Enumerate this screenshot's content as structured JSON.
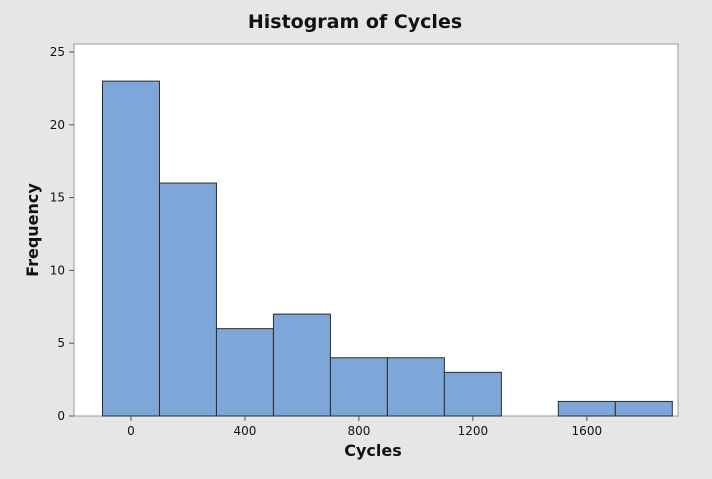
{
  "chart_data": {
    "type": "bar",
    "title": "Histogram of Cycles",
    "xlabel": "Cycles",
    "ylabel": "Frequency",
    "bin_width": 200,
    "bins": [
      {
        "start": -100,
        "end": 100,
        "frequency": 23
      },
      {
        "start": 100,
        "end": 300,
        "frequency": 16
      },
      {
        "start": 300,
        "end": 500,
        "frequency": 6
      },
      {
        "start": 500,
        "end": 700,
        "frequency": 7
      },
      {
        "start": 700,
        "end": 900,
        "frequency": 4
      },
      {
        "start": 900,
        "end": 1100,
        "frequency": 4
      },
      {
        "start": 1100,
        "end": 1300,
        "frequency": 3
      },
      {
        "start": 1300,
        "end": 1500,
        "frequency": 0
      },
      {
        "start": 1500,
        "end": 1700,
        "frequency": 1
      },
      {
        "start": 1700,
        "end": 1900,
        "frequency": 1
      }
    ],
    "xlim": [
      -200,
      1920
    ],
    "ylim": [
      0,
      25
    ],
    "x_ticks": [
      0,
      400,
      800,
      1200,
      1600
    ],
    "y_ticks": [
      0,
      5,
      10,
      15,
      20,
      25
    ],
    "colors": {
      "bar_fill": "#7da7d9",
      "bar_edge": "#2b2b2b",
      "background": "#e6e6e6",
      "plot_area": "#ffffff"
    },
    "grid": false
  }
}
